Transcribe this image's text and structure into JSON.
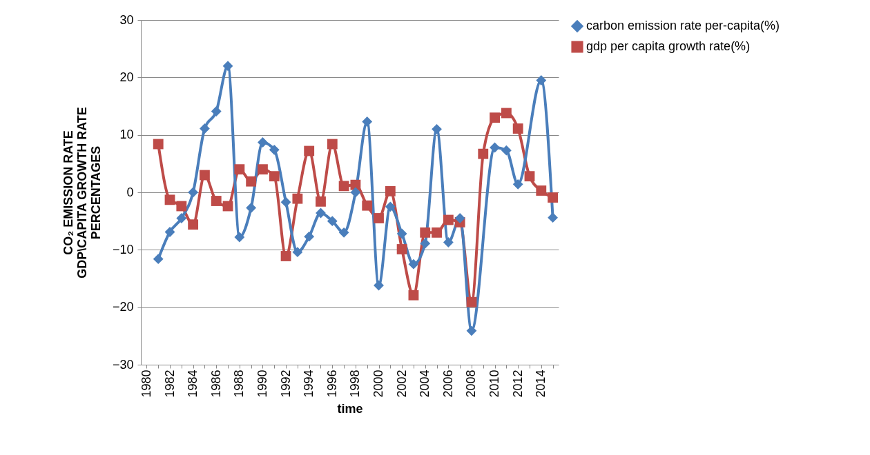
{
  "chart_data": {
    "type": "line",
    "xlabel": "time",
    "ylabel": "CO₂ EMISSION RATE\nGDP\\CAPITA GROWTH RATE\nPERCENTAGES",
    "categories": [
      "1980",
      null,
      "1982",
      null,
      "1984",
      null,
      "1986",
      null,
      "1988",
      null,
      "1990",
      null,
      "1992",
      null,
      "1994",
      null,
      "1996",
      null,
      "1998",
      null,
      "2000",
      null,
      "2002",
      null,
      "2004",
      null,
      "2006",
      null,
      "2008",
      null,
      "2010",
      null,
      "2012",
      null,
      "2014",
      null
    ],
    "series": [
      {
        "name": "carbon emission rate per-capita(%)",
        "color": "#4a7ebb",
        "marker": "diamond",
        "values": [
          null,
          -11.6,
          -6.9,
          -4.5,
          0,
          11.1,
          14.1,
          22.0,
          -7.8,
          -2.7,
          8.7,
          7.4,
          -1.7,
          -10.4,
          -7.7,
          -3.6,
          -5.0,
          -7.0,
          0,
          12.3,
          -16.2,
          -2.5,
          -7.2,
          -12.5,
          -8.9,
          11.0,
          -8.7,
          -4.5,
          -24.1,
          null,
          7.8,
          7.3,
          1.4,
          null,
          19.5,
          -4.4
        ]
      },
      {
        "name": "gdp per capita growth rate(%)",
        "color": "#be4b48",
        "marker": "square",
        "values": [
          null,
          8.4,
          -1.3,
          -2.4,
          -5.6,
          3.0,
          -1.5,
          -2.4,
          4.0,
          1.9,
          4.0,
          2.8,
          -11.1,
          -1.1,
          7.2,
          -1.6,
          8.4,
          1.1,
          1.3,
          -2.3,
          -4.5,
          0.2,
          -9.9,
          -17.9,
          -7.0,
          -7.0,
          -4.8,
          -5.2,
          -19.1,
          6.7,
          13.0,
          13.8,
          11.1,
          2.8,
          0.3,
          -0.9
        ]
      }
    ],
    "ylim": [
      -30,
      30
    ],
    "yticks": [
      -30,
      -20,
      -10,
      0,
      10,
      20,
      30
    ],
    "grid": "y",
    "legend": "right",
    "line_style": "solid"
  }
}
